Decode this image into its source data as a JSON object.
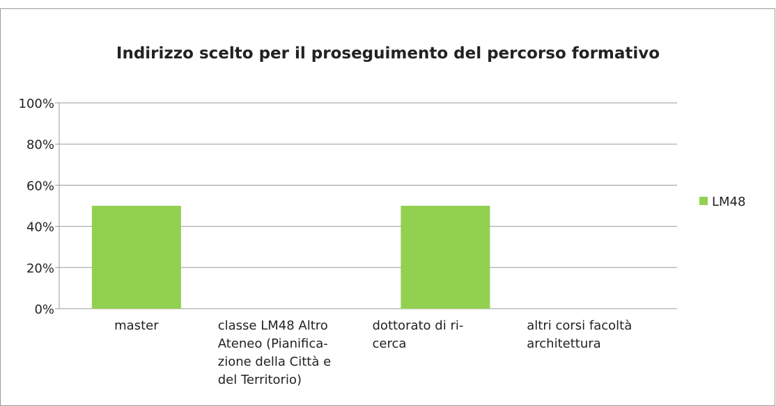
{
  "chart_data": {
    "type": "bar",
    "title": "Indirizzo scelto per il proseguimento del percorso formativo",
    "categories": [
      "master",
      "classe LM48 Altro\nAteneo (Pianifica-\nzione della Città e\ndel Territorio)",
      "dottorato di ri-\ncerca",
      "altri corsi facoltà\narchitettura"
    ],
    "series": [
      {
        "name": "LM48",
        "color": "#92d050",
        "values": [
          50,
          0,
          50,
          0
        ]
      }
    ],
    "ylim": [
      0,
      100
    ],
    "yticks": [
      {
        "value": 0,
        "label": "0%"
      },
      {
        "value": 20,
        "label": "20%"
      },
      {
        "value": 40,
        "label": "40%"
      },
      {
        "value": 60,
        "label": "60%"
      },
      {
        "value": 80,
        "label": "80%"
      },
      {
        "value": 100,
        "label": "100%"
      }
    ],
    "grid": true,
    "legend": "right"
  }
}
